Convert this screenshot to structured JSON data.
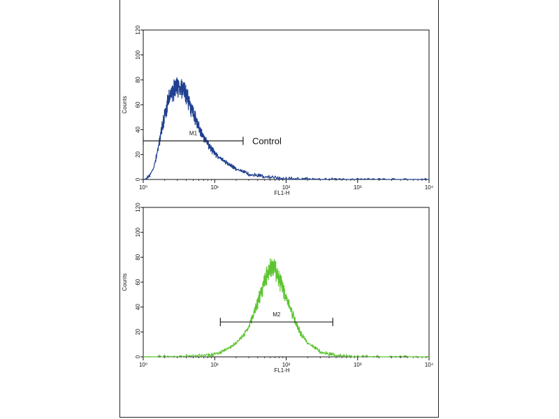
{
  "chart_data": [
    {
      "type": "line",
      "name": "top-histogram",
      "xlabel": "FL1-H",
      "ylabel": "Counts",
      "x_scale": "log",
      "xlim": [
        1,
        10000
      ],
      "ylim": [
        0,
        120
      ],
      "x_ticks": [
        1,
        10,
        100,
        1000,
        10000
      ],
      "y_ticks": [
        0,
        20,
        40,
        60,
        80,
        100,
        120
      ],
      "color": "#1f3f8f",
      "series": [
        {
          "x": [
            1.0,
            1.2,
            1.4,
            1.6,
            1.8,
            2.0,
            2.2,
            2.5,
            2.8,
            3.0,
            3.3,
            3.6,
            4.0,
            4.5,
            5.0,
            5.5,
            6.0,
            7.0,
            8.0,
            9.0,
            10,
            12,
            14,
            16,
            18,
            20,
            25,
            30,
            40,
            50,
            70,
            100,
            150,
            200,
            300,
            500,
            1000,
            2000,
            5000,
            10000
          ],
          "y": [
            0,
            3,
            10,
            25,
            42,
            55,
            65,
            74,
            78,
            80,
            79,
            77,
            72,
            64,
            56,
            50,
            44,
            36,
            30,
            26,
            22,
            18,
            15,
            13,
            11,
            9,
            7,
            5,
            4,
            3,
            2,
            1.5,
            1,
            1,
            0.5,
            0.5,
            0.3,
            0.2,
            0.1,
            0
          ]
        }
      ],
      "markers": [
        {
          "label": "M1",
          "x_range": [
            1,
            25
          ],
          "y": 31
        }
      ],
      "annotation": "Control"
    },
    {
      "type": "line",
      "name": "bottom-histogram",
      "xlabel": "FL1-H",
      "ylabel": "Counts",
      "x_scale": "log",
      "xlim": [
        1,
        10000
      ],
      "ylim": [
        0,
        120
      ],
      "x_ticks": [
        1,
        10,
        100,
        1000,
        10000
      ],
      "y_ticks": [
        0,
        20,
        40,
        60,
        80,
        100,
        120
      ],
      "color": "#5cc430",
      "series": [
        {
          "x": [
            1.0,
            2.0,
            3.0,
            5.0,
            8.0,
            10,
            13,
            16,
            20,
            25,
            30,
            35,
            40,
            45,
            50,
            55,
            60,
            65,
            70,
            80,
            90,
            100,
            120,
            140,
            160,
            200,
            250,
            300,
            400,
            500,
            700,
            1000,
            2000,
            5000,
            10000
          ],
          "y": [
            0.5,
            0.8,
            1,
            1.5,
            2,
            3,
            5,
            8,
            12,
            18,
            26,
            36,
            46,
            56,
            64,
            70,
            75,
            77,
            74,
            66,
            58,
            50,
            38,
            28,
            20,
            12,
            8,
            5,
            3,
            2,
            1,
            0.8,
            0.5,
            0.3,
            0
          ]
        }
      ],
      "markers": [
        {
          "label": "M2",
          "x_range": [
            12,
            450
          ],
          "y": 28
        }
      ]
    }
  ]
}
